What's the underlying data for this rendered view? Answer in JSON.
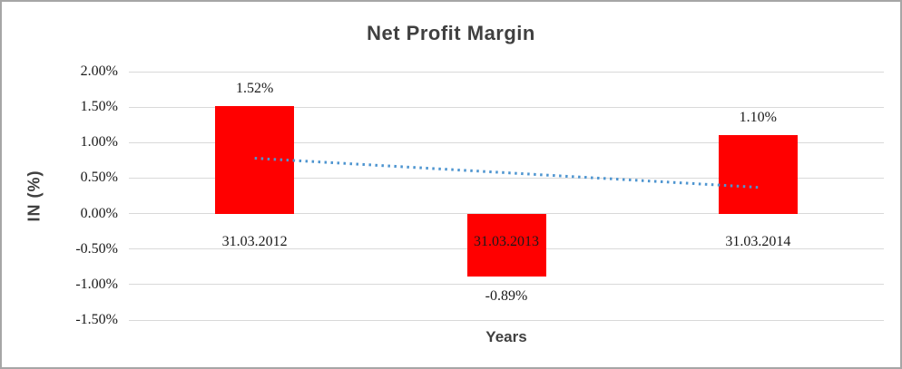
{
  "window": {
    "background": "#ffffff",
    "border_color": "#a6a6a6"
  },
  "chart_data": {
    "type": "bar",
    "title": "Net Profit Margin",
    "xlabel": "Years",
    "ylabel": "IN (%)",
    "categories": [
      "31.03.2012",
      "31.03.2013",
      "31.03.2014"
    ],
    "series": [
      {
        "name": "Net Profit Margin",
        "values": [
          1.52,
          -0.89,
          1.1
        ]
      }
    ],
    "data_labels": [
      "1.52%",
      "-0.89%",
      "1.10%"
    ],
    "ytick_values": [
      2.0,
      1.5,
      1.0,
      0.5,
      0.0,
      -0.5,
      -1.0,
      -1.5
    ],
    "ytick_labels": [
      "2.00%",
      "1.50%",
      "1.00%",
      "0.50%",
      "0.00%",
      "-0.50%",
      "-1.00%",
      "-1.50%"
    ],
    "ylim": [
      -1.5,
      2.0
    ],
    "grid": true,
    "legend": false,
    "bar_color": "#ff0000",
    "gridline_color": "#d9d9d9",
    "title_color": "#404040",
    "label_color": "#1a1a1a",
    "trendline": {
      "style": "dotted",
      "color": "#4e95d0",
      "start_value_pct": 0.78,
      "end_value_pct": 0.37
    }
  }
}
